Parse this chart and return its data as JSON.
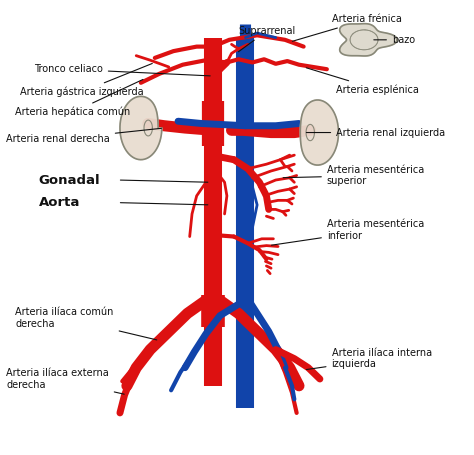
{
  "bg_color": "#ffffff",
  "red": "#dd1111",
  "blue": "#1144aa",
  "kidney_fill": "#e8ddd0",
  "kidney_line": "#888878",
  "spleen_fill": "#ddd8cc",
  "black": "#111111",
  "labels": {
    "arteria_frenica": "Arteria frénica",
    "suprarrenal": "Suprarrenal",
    "bazo": "bazo",
    "tronco_celiaco": "Tronco celiaco",
    "arteria_gastrica": "Arteria gástrica izquierda",
    "arteria_hepatica": "Arteria hepática común",
    "arteria_renal_derecha": "Arteria renal derecha",
    "arteria_esplenica": "Arteria esplénica",
    "arteria_renal_izquierda": "Arteria renal izquierda",
    "gonadal": "Gonadal",
    "aorta_label": "Aorta",
    "arteria_mesenterica_superior": "Arteria mesentérica\nsuperior",
    "arteria_mesenterica_inferior": "Arteria mesentérica\ninferior",
    "arteria_iliaca_comun_derecha": "Arteria ilíaca común\nderecha",
    "arteria_iliaca_externa_derecha": "Arteria ilíaca externa\nderecha",
    "arteria_iliaca_interna_izquierda": "Arteria ilíaca interna\nizquierda"
  }
}
